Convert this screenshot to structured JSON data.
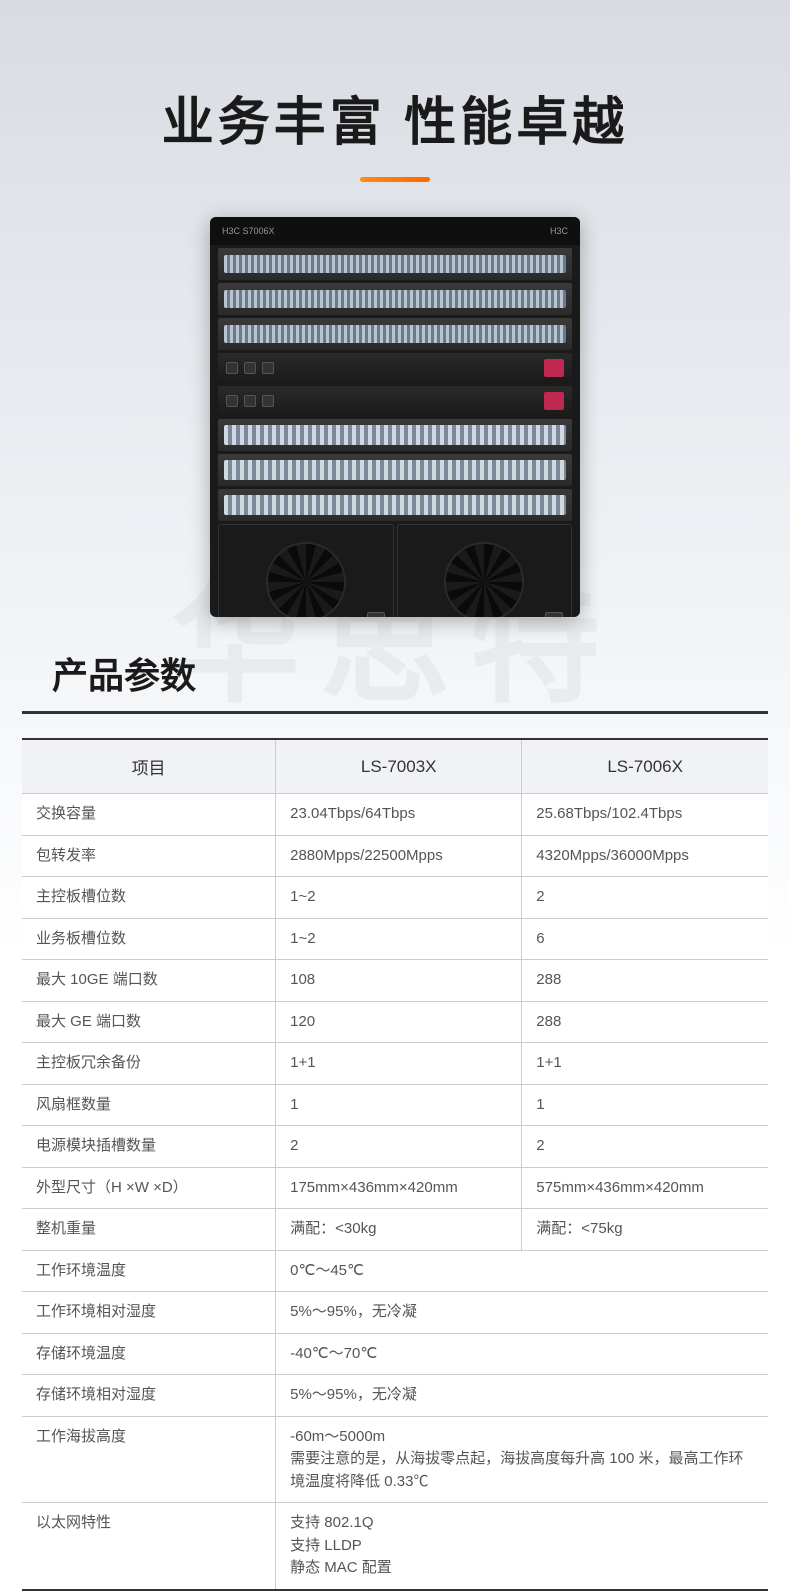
{
  "hero": {
    "title": "业务丰富  性能卓越",
    "underline_color": "#ff7a1a",
    "product_model_left": "H3C  S7006X",
    "product_brand": "H3C"
  },
  "watermark_text": "华思特",
  "section_title": "产品参数",
  "table": {
    "headers": [
      "项目",
      "LS-7003X",
      "LS-7006X"
    ],
    "rows": [
      {
        "label": "交换容量",
        "c1": "23.04Tbps/64Tbps",
        "c2": "25.68Tbps/102.4Tbps"
      },
      {
        "label": "包转发率",
        "c1": "2880Mpps/22500Mpps",
        "c2": "4320Mpps/36000Mpps"
      },
      {
        "label": "主控板槽位数",
        "c1": "1~2",
        "c2": "2"
      },
      {
        "label": "业务板槽位数",
        "c1": "1~2",
        "c2": "6"
      },
      {
        "label": "最大 10GE 端口数",
        "c1": "108",
        "c2": "288"
      },
      {
        "label": "最大 GE 端口数",
        "c1": "120",
        "c2": "288"
      },
      {
        "label": "主控板冗余备份",
        "c1": "1+1",
        "c2": "1+1"
      },
      {
        "label": "风扇框数量",
        "c1": "1",
        "c2": "1"
      },
      {
        "label": "电源模块插槽数量",
        "c1": "2",
        "c2": "2"
      },
      {
        "label": "外型尺寸（H ×W ×D）",
        "c1": "175mm×436mm×420mm",
        "c2": "575mm×436mm×420mm"
      },
      {
        "label": "整机重量",
        "c1": "满配：<30kg",
        "c2": "满配：<75kg"
      },
      {
        "label": "工作环境温度",
        "span": "0℃～45℃"
      },
      {
        "label": "工作环境相对湿度",
        "span": "5%～95%，无冷凝"
      },
      {
        "label": "存储环境温度",
        "span": "-40℃～70℃"
      },
      {
        "label": "存储环境相对湿度",
        "span": "5%～95%，无冷凝"
      },
      {
        "label": "工作海拔高度",
        "span": "-60m～5000m\n需要注意的是，从海拔零点起，海拔高度每升高 100 米，最高工作环境温度将降低 0.33℃"
      },
      {
        "label": "以太网特性",
        "span": "支持 802.1Q\n支持 LLDP\n静态 MAC 配置"
      }
    ]
  },
  "colors": {
    "title_text": "#1a1a1a",
    "accent": "#ff7a1a",
    "table_header_bg": "#f0f2f5",
    "table_border": "#cccccc",
    "table_border_strong": "#333333",
    "body_text": "#555555"
  }
}
